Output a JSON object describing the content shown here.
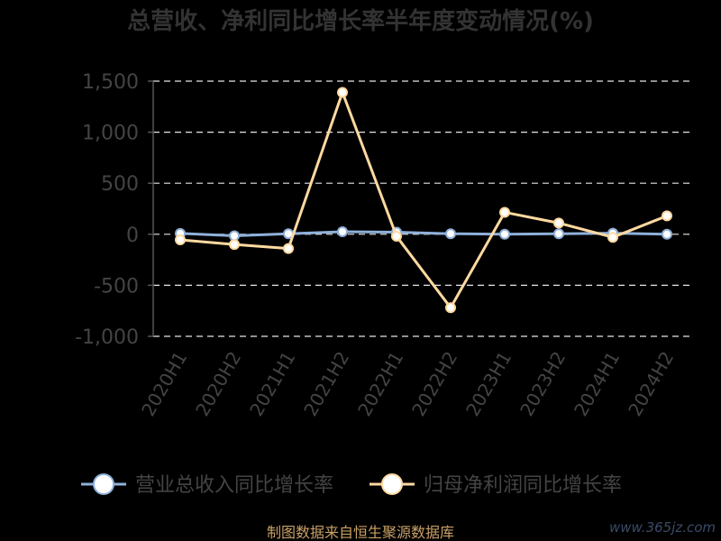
{
  "chart_data": {
    "type": "line",
    "title": "总营收、净利同比增长率半年度变动情况(%)",
    "xlabel": "",
    "ylabel": "",
    "categories": [
      "2020H1",
      "2020H2",
      "2021H1",
      "2021H2",
      "2022H1",
      "2022H2",
      "2023H1",
      "2023H2",
      "2024H1",
      "2024H2"
    ],
    "ylim": [
      -1000,
      1500
    ],
    "yticks": [
      -1000,
      -500,
      0,
      500,
      1000,
      1500
    ],
    "ytick_labels": [
      "-1,000",
      "-500",
      "0",
      "500",
      "1,000",
      "1,500"
    ],
    "grid": true,
    "legend_position": "bottom",
    "series": [
      {
        "name": "营业总收入同比增长率",
        "color": "#8fb0d9",
        "values": [
          8,
          -15,
          5,
          25,
          20,
          5,
          0,
          5,
          10,
          0
        ]
      },
      {
        "name": "归母净利润同比增长率",
        "color": "#ffd9a0",
        "values": [
          -55,
          -100,
          -140,
          1390,
          -20,
          -720,
          215,
          110,
          -30,
          180
        ]
      }
    ]
  },
  "footer": {
    "source": "制图数据来自恒生聚源数据库",
    "watermark": "www.365jz.com"
  }
}
